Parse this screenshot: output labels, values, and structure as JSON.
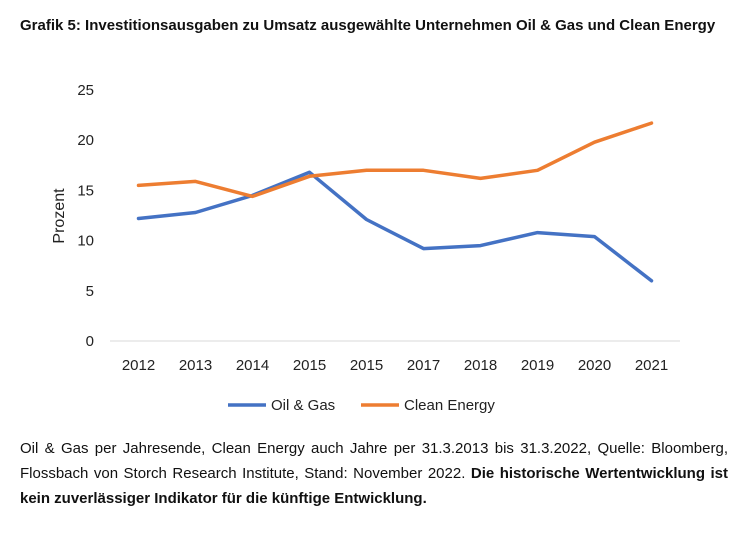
{
  "chart_data": {
    "type": "line",
    "title": "Grafik 5: Investitionsausgaben zu Umsatz ausgewählte Unternehmen Oil & Gas und Clean Energy",
    "ylabel": "Prozent",
    "xlabel": "",
    "categories": [
      "2012",
      "2013",
      "2014",
      "2015",
      "2015",
      "2017",
      "2018",
      "2019",
      "2020",
      "2021"
    ],
    "yticks": [
      0,
      5,
      10,
      15,
      20,
      25
    ],
    "ylim": [
      0,
      25
    ],
    "grid": false,
    "legend_position": "bottom",
    "series": [
      {
        "name": "Oil & Gas",
        "color": "#4472C4",
        "values": [
          12.2,
          12.8,
          14.5,
          16.8,
          12.1,
          9.2,
          9.5,
          10.8,
          10.4,
          6.0
        ]
      },
      {
        "name": "Clean Energy",
        "color": "#ED7D31",
        "values": [
          15.5,
          15.9,
          14.4,
          16.4,
          17.0,
          17.0,
          16.2,
          17.0,
          19.8,
          21.7
        ]
      }
    ]
  },
  "footnote": {
    "text": "Oil & Gas per Jahresende, Clean Energy auch Jahre per 31.3.2013 bis 31.3.2022, Quelle: Bloomberg, Flossbach von Storch Research Institute, Stand: November 2022.",
    "bold": "Die historische Wertentwicklung ist kein zuverlässiger Indikator für die künftige Entwicklung."
  }
}
